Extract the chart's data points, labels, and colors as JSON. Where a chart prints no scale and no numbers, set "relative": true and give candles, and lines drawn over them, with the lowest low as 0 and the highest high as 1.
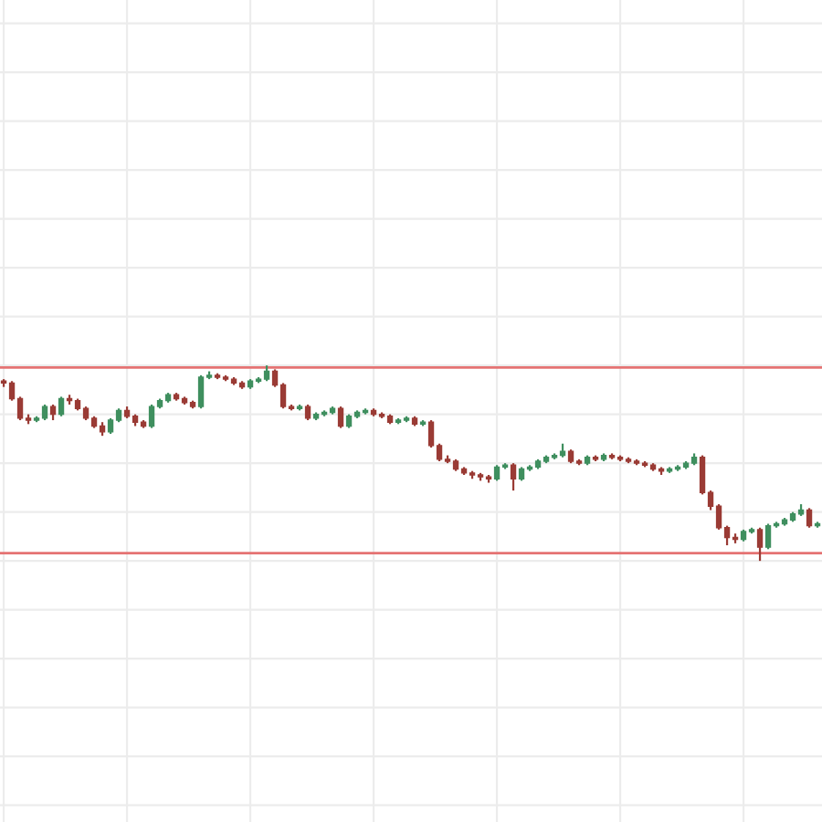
{
  "chart_data": {
    "type": "candlestick",
    "relative": true,
    "grid": true,
    "categories": [
      null,
      null,
      null,
      null,
      null,
      null,
      null,
      null,
      null,
      null,
      null,
      null,
      null,
      null,
      null,
      null,
      null,
      null,
      null,
      null,
      null,
      null,
      null,
      null,
      null,
      null,
      null,
      null,
      null,
      null,
      null,
      null,
      null,
      null,
      null,
      null,
      null,
      null,
      null,
      null,
      null,
      null,
      null,
      null,
      null,
      null,
      null,
      null,
      null,
      null,
      null,
      null,
      null,
      null,
      null,
      null,
      null,
      null,
      null,
      null,
      null,
      null,
      null,
      null,
      null,
      null,
      null,
      null,
      null,
      null,
      null,
      null,
      null,
      null,
      null,
      null,
      null,
      null,
      null,
      null,
      null,
      null,
      null,
      null,
      null,
      null,
      null,
      null,
      null,
      null,
      null,
      null,
      null,
      null,
      null,
      null,
      null,
      null,
      null,
      null
    ],
    "ohlc": [
      [
        0.92,
        0.93,
        0.89,
        0.91
      ],
      [
        0.91,
        0.92,
        0.82,
        0.83
      ],
      [
        0.83,
        0.84,
        0.72,
        0.73
      ],
      [
        0.73,
        0.75,
        0.7,
        0.72
      ],
      [
        0.72,
        0.74,
        0.71,
        0.73
      ],
      [
        0.73,
        0.8,
        0.72,
        0.79
      ],
      [
        0.79,
        0.8,
        0.72,
        0.75
      ],
      [
        0.75,
        0.84,
        0.74,
        0.83
      ],
      [
        0.83,
        0.85,
        0.8,
        0.82
      ],
      [
        0.82,
        0.83,
        0.77,
        0.78
      ],
      [
        0.78,
        0.79,
        0.72,
        0.73
      ],
      [
        0.73,
        0.74,
        0.68,
        0.69
      ],
      [
        0.69,
        0.71,
        0.64,
        0.66
      ],
      [
        0.66,
        0.73,
        0.65,
        0.72
      ],
      [
        0.72,
        0.78,
        0.71,
        0.77
      ],
      [
        0.77,
        0.79,
        0.73,
        0.74
      ],
      [
        0.74,
        0.75,
        0.69,
        0.71
      ],
      [
        0.71,
        0.72,
        0.68,
        0.69
      ],
      [
        0.69,
        0.8,
        0.68,
        0.79
      ],
      [
        0.79,
        0.83,
        0.78,
        0.82
      ],
      [
        0.82,
        0.86,
        0.81,
        0.85
      ],
      [
        0.85,
        0.86,
        0.82,
        0.83
      ],
      [
        0.83,
        0.84,
        0.8,
        0.81
      ],
      [
        0.81,
        0.82,
        0.78,
        0.79
      ],
      [
        0.79,
        0.95,
        0.78,
        0.94
      ],
      [
        0.94,
        0.97,
        0.93,
        0.95
      ],
      [
        0.95,
        0.96,
        0.93,
        0.94
      ],
      [
        0.94,
        0.95,
        0.92,
        0.93
      ],
      [
        0.93,
        0.94,
        0.9,
        0.91
      ],
      [
        0.91,
        0.92,
        0.88,
        0.89
      ],
      [
        0.89,
        0.93,
        0.88,
        0.92
      ],
      [
        0.92,
        0.94,
        0.91,
        0.93
      ],
      [
        0.93,
        1.0,
        0.92,
        0.97
      ],
      [
        0.97,
        0.98,
        0.89,
        0.9
      ],
      [
        0.9,
        0.91,
        0.78,
        0.79
      ],
      [
        0.79,
        0.8,
        0.77,
        0.78
      ],
      [
        0.78,
        0.8,
        0.77,
        0.79
      ],
      [
        0.79,
        0.8,
        0.72,
        0.73
      ],
      [
        0.73,
        0.76,
        0.72,
        0.75
      ],
      [
        0.75,
        0.77,
        0.74,
        0.76
      ],
      [
        0.76,
        0.79,
        0.75,
        0.78
      ],
      [
        0.78,
        0.79,
        0.68,
        0.69
      ],
      [
        0.69,
        0.75,
        0.68,
        0.74
      ],
      [
        0.74,
        0.77,
        0.73,
        0.76
      ],
      [
        0.76,
        0.78,
        0.75,
        0.77
      ],
      [
        0.77,
        0.78,
        0.74,
        0.75
      ],
      [
        0.75,
        0.76,
        0.73,
        0.74
      ],
      [
        0.74,
        0.75,
        0.7,
        0.71
      ],
      [
        0.71,
        0.73,
        0.7,
        0.72
      ],
      [
        0.72,
        0.74,
        0.71,
        0.73
      ],
      [
        0.73,
        0.74,
        0.69,
        0.7
      ],
      [
        0.7,
        0.72,
        0.69,
        0.71
      ],
      [
        0.71,
        0.72,
        0.58,
        0.59
      ],
      [
        0.59,
        0.6,
        0.51,
        0.52
      ],
      [
        0.52,
        0.54,
        0.5,
        0.51
      ],
      [
        0.51,
        0.52,
        0.46,
        0.47
      ],
      [
        0.47,
        0.48,
        0.44,
        0.45
      ],
      [
        0.45,
        0.46,
        0.42,
        0.44
      ],
      [
        0.44,
        0.45,
        0.41,
        0.43
      ],
      [
        0.43,
        0.44,
        0.4,
        0.42
      ],
      [
        0.42,
        0.49,
        0.41,
        0.48
      ],
      [
        0.48,
        0.5,
        0.47,
        0.49
      ],
      [
        0.49,
        0.5,
        0.36,
        0.42
      ],
      [
        0.42,
        0.48,
        0.41,
        0.47
      ],
      [
        0.47,
        0.49,
        0.46,
        0.48
      ],
      [
        0.48,
        0.52,
        0.47,
        0.51
      ],
      [
        0.51,
        0.54,
        0.5,
        0.53
      ],
      [
        0.53,
        0.55,
        0.52,
        0.54
      ],
      [
        0.54,
        0.6,
        0.53,
        0.56
      ],
      [
        0.56,
        0.57,
        0.5,
        0.51
      ],
      [
        0.51,
        0.52,
        0.49,
        0.5
      ],
      [
        0.5,
        0.54,
        0.49,
        0.53
      ],
      [
        0.53,
        0.54,
        0.51,
        0.52
      ],
      [
        0.52,
        0.55,
        0.51,
        0.54
      ],
      [
        0.54,
        0.55,
        0.52,
        0.53
      ],
      [
        0.53,
        0.54,
        0.51,
        0.52
      ],
      [
        0.52,
        0.53,
        0.5,
        0.51
      ],
      [
        0.51,
        0.52,
        0.49,
        0.5
      ],
      [
        0.5,
        0.51,
        0.48,
        0.49
      ],
      [
        0.49,
        0.5,
        0.46,
        0.47
      ],
      [
        0.47,
        0.48,
        0.44,
        0.46
      ],
      [
        0.46,
        0.48,
        0.45,
        0.47
      ],
      [
        0.47,
        0.49,
        0.46,
        0.48
      ],
      [
        0.48,
        0.51,
        0.47,
        0.5
      ],
      [
        0.5,
        0.55,
        0.49,
        0.53
      ],
      [
        0.53,
        0.54,
        0.34,
        0.35
      ],
      [
        0.35,
        0.36,
        0.26,
        0.28
      ],
      [
        0.28,
        0.29,
        0.16,
        0.17
      ],
      [
        0.17,
        0.18,
        0.08,
        0.12
      ],
      [
        0.12,
        0.14,
        0.09,
        0.11
      ],
      [
        0.11,
        0.16,
        0.1,
        0.15
      ],
      [
        0.15,
        0.17,
        0.14,
        0.16
      ],
      [
        0.16,
        0.17,
        0.0,
        0.07
      ],
      [
        0.07,
        0.19,
        0.06,
        0.18
      ],
      [
        0.18,
        0.2,
        0.17,
        0.19
      ],
      [
        0.19,
        0.22,
        0.18,
        0.21
      ],
      [
        0.21,
        0.25,
        0.2,
        0.24
      ],
      [
        0.24,
        0.29,
        0.23,
        0.26
      ],
      [
        0.26,
        0.27,
        0.17,
        0.18
      ],
      [
        0.18,
        0.2,
        0.17,
        0.19
      ]
    ],
    "ref_lines": [
      {
        "axis": "y",
        "value": 0.99,
        "color": "#e57373"
      },
      {
        "axis": "y",
        "value": 0.04,
        "color": "#e57373"
      }
    ]
  }
}
